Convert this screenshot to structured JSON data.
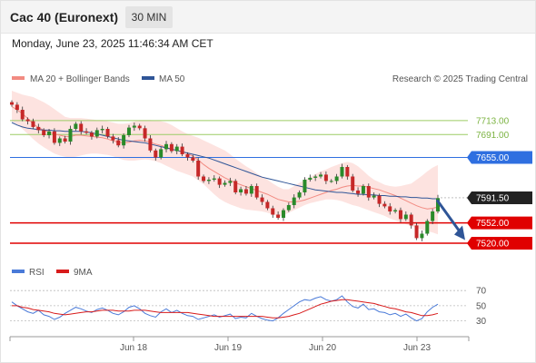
{
  "header": {
    "title": "Cac 40 (Euronext)",
    "timeframe": "30 MIN",
    "datetime": "Monday, June 23, 2025 11:46:34 AM CET"
  },
  "legend": {
    "ma20": "MA 20 + Bollinger Bands",
    "ma50": "MA 50",
    "credit": "Research © 2025 Trading Central"
  },
  "rsi_legend": {
    "rsi": "RSI",
    "ma": "9MA"
  },
  "colors": {
    "bullish": "#2a8a2a",
    "bearish": "#c62828",
    "ma20_band": "#f28b82",
    "ma50": "#2f5597",
    "support": "#e00000",
    "pivot": "#2f6fe0",
    "resistance": "#9ccc65",
    "rsi": "#4a7ad8",
    "rsi_ma": "#d81b1b"
  },
  "chart_data": {
    "type": "candlestick",
    "title": "Cac 40 (Euronext)",
    "interval": "30 MIN",
    "y_range": [
      7500,
      7760
    ],
    "x_labels": [
      "Jun 18",
      "Jun 19",
      "Jun 20",
      "Jun 23"
    ],
    "levels": [
      {
        "value": 7713.0,
        "label": "7713.00",
        "kind": "resistance"
      },
      {
        "value": 7691.0,
        "label": "7691.00",
        "kind": "resistance"
      },
      {
        "value": 7655.0,
        "label": "7655.00",
        "kind": "pivot"
      },
      {
        "value": 7552.0,
        "label": "7552.00",
        "kind": "support"
      },
      {
        "value": 7520.0,
        "label": "7520.00",
        "kind": "support"
      }
    ],
    "last_price": {
      "value": 7591.5,
      "label": "7591.50"
    },
    "forecast_arrow": {
      "from": 7588,
      "to": 7525,
      "direction": "down"
    },
    "close_series": [
      7738,
      7730,
      7715,
      7712,
      7703,
      7698,
      7690,
      7696,
      7678,
      7685,
      7680,
      7700,
      7708,
      7696,
      7694,
      7688,
      7698,
      7700,
      7688,
      7682,
      7674,
      7690,
      7702,
      7705,
      7701,
      7685,
      7666,
      7655,
      7668,
      7676,
      7665,
      7672,
      7660,
      7655,
      7650,
      7625,
      7618,
      7620,
      7622,
      7612,
      7615,
      7618,
      7600,
      7605,
      7598,
      7610,
      7592,
      7585,
      7575,
      7565,
      7560,
      7572,
      7580,
      7592,
      7600,
      7620,
      7623,
      7625,
      7628,
      7618,
      7618,
      7625,
      7640,
      7625,
      7603,
      7598,
      7610,
      7592,
      7595,
      7582,
      7578,
      7570,
      7572,
      7558,
      7565,
      7548,
      7528,
      7535,
      7555,
      7570,
      7591
    ],
    "ma20_series": [
      7735,
      7730,
      7724,
      7716,
      7708,
      7702,
      7698,
      7695,
      7692,
      7690,
      7688,
      7688,
      7690,
      7690,
      7689,
      7688,
      7687,
      7686,
      7684,
      7681,
      7679,
      7678,
      7679,
      7681,
      7682,
      7681,
      7679,
      7676,
      7674,
      7671,
      7668,
      7666,
      7664,
      7661,
      7657,
      7651,
      7644,
      7638,
      7633,
      7628,
      7623,
      7619,
      7615,
      7612,
      7609,
      7606,
      7603,
      7600,
      7597,
      7593,
      7589,
      7587,
      7585,
      7585,
      7586,
      7588,
      7591,
      7594,
      7597,
      7600,
      7603,
      7605,
      7608,
      7610,
      7611,
      7610,
      7610,
      7608,
      7606,
      7604,
      7601,
      7598,
      7595,
      7591,
      7587,
      7583,
      7579,
      7576,
      7574,
      7575,
      7577
    ],
    "band_upper": [
      7760,
      7757,
      7754,
      7752,
      7750,
      7746,
      7742,
      7737,
      7731,
      7725,
      7719,
      7717,
      7717,
      7717,
      7716,
      7715,
      7714,
      7714,
      7712,
      7710,
      7708,
      7708,
      7709,
      7712,
      7714,
      7714,
      7714,
      7713,
      7712,
      7710,
      7706,
      7701,
      7696,
      7692,
      7689,
      7686,
      7682,
      7678,
      7674,
      7670,
      7666,
      7660,
      7653,
      7647,
      7641,
      7636,
      7630,
      7625,
      7620,
      7614,
      7609,
      7605,
      7605,
      7610,
      7615,
      7620,
      7624,
      7629,
      7633,
      7636,
      7640,
      7643,
      7646,
      7648,
      7646,
      7641,
      7634,
      7626,
      7620,
      7616,
      7612,
      7610,
      7609,
      7610,
      7612,
      7614,
      7620,
      7626,
      7633,
      7639,
      7643
    ],
    "band_lower": [
      7712,
      7707,
      7700,
      7692,
      7684,
      7677,
      7671,
      7666,
      7661,
      7658,
      7656,
      7655,
      7656,
      7658,
      7660,
      7661,
      7661,
      7660,
      7659,
      7657,
      7654,
      7651,
      7650,
      7650,
      7651,
      7652,
      7651,
      7649,
      7646,
      7642,
      7638,
      7634,
      7631,
      7628,
      7625,
      7619,
      7613,
      7605,
      7597,
      7590,
      7585,
      7581,
      7578,
      7575,
      7573,
      7572,
      7571,
      7570,
      7568,
      7565,
      7562,
      7564,
      7568,
      7572,
      7576,
      7580,
      7583,
      7585,
      7587,
      7589,
      7589,
      7588,
      7586,
      7583,
      7580,
      7578,
      7575,
      7572,
      7569,
      7566,
      7563,
      7559,
      7556,
      7553,
      7550,
      7547,
      7544,
      7541,
      7539,
      7537,
      7534
    ],
    "ma50_series": [
      7710,
      7706,
      7703,
      7701,
      7700,
      7699,
      7698,
      7698,
      7697,
      7697,
      7696,
      7696,
      7696,
      7696,
      7695,
      7694,
      7692,
      7690,
      7688,
      7686,
      7684,
      7682,
      7681,
      7680,
      7679,
      7678,
      7676,
      7674,
      7672,
      7670,
      7668,
      7666,
      7664,
      7662,
      7660,
      7658,
      7656,
      7654,
      7651,
      7648,
      7645,
      7642,
      7639,
      7636,
      7633,
      7630,
      7627,
      7624,
      7622,
      7620,
      7618,
      7616,
      7614,
      7612,
      7610,
      7608,
      7606,
      7604,
      7603,
      7602,
      7601,
      7600,
      7600,
      7599,
      7598,
      7597,
      7597,
      7596,
      7596,
      7595,
      7595,
      7594,
      7594,
      7593,
      7593,
      7592,
      7592,
      7591,
      7591,
      7590,
      7590
    ],
    "rsi": {
      "levels": [
        70,
        50,
        30
      ],
      "values": [
        55,
        50,
        46,
        42,
        40,
        44,
        38,
        36,
        32,
        35,
        40,
        44,
        48,
        46,
        43,
        41,
        45,
        47,
        44,
        40,
        38,
        42,
        48,
        50,
        46,
        40,
        37,
        35,
        42,
        46,
        41,
        44,
        40,
        37,
        36,
        32,
        34,
        36,
        38,
        35,
        37,
        39,
        33,
        35,
        34,
        40,
        36,
        33,
        31,
        30,
        34,
        40,
        45,
        50,
        55,
        58,
        57,
        60,
        62,
        58,
        56,
        58,
        63,
        55,
        49,
        47,
        52,
        45,
        46,
        42,
        41,
        38,
        40,
        36,
        39,
        34,
        30,
        33,
        42,
        48,
        52
      ],
      "ma_values": [
        50,
        50,
        48,
        47,
        45,
        44,
        43,
        42,
        40,
        39,
        38,
        39,
        40,
        41,
        42,
        42,
        43,
        44,
        44,
        44,
        43,
        43,
        43,
        44,
        44,
        44,
        43,
        42,
        41,
        41,
        41,
        41,
        41,
        41,
        40,
        39,
        38,
        37,
        36,
        36,
        36,
        36,
        36,
        36,
        36,
        36,
        36,
        36,
        35,
        34,
        34,
        35,
        36,
        38,
        40,
        43,
        46,
        49,
        52,
        54,
        56,
        57,
        58,
        58,
        57,
        56,
        55,
        54,
        53,
        51,
        49,
        47,
        46,
        44,
        42,
        41,
        39,
        37,
        37,
        38,
        40
      ]
    }
  }
}
